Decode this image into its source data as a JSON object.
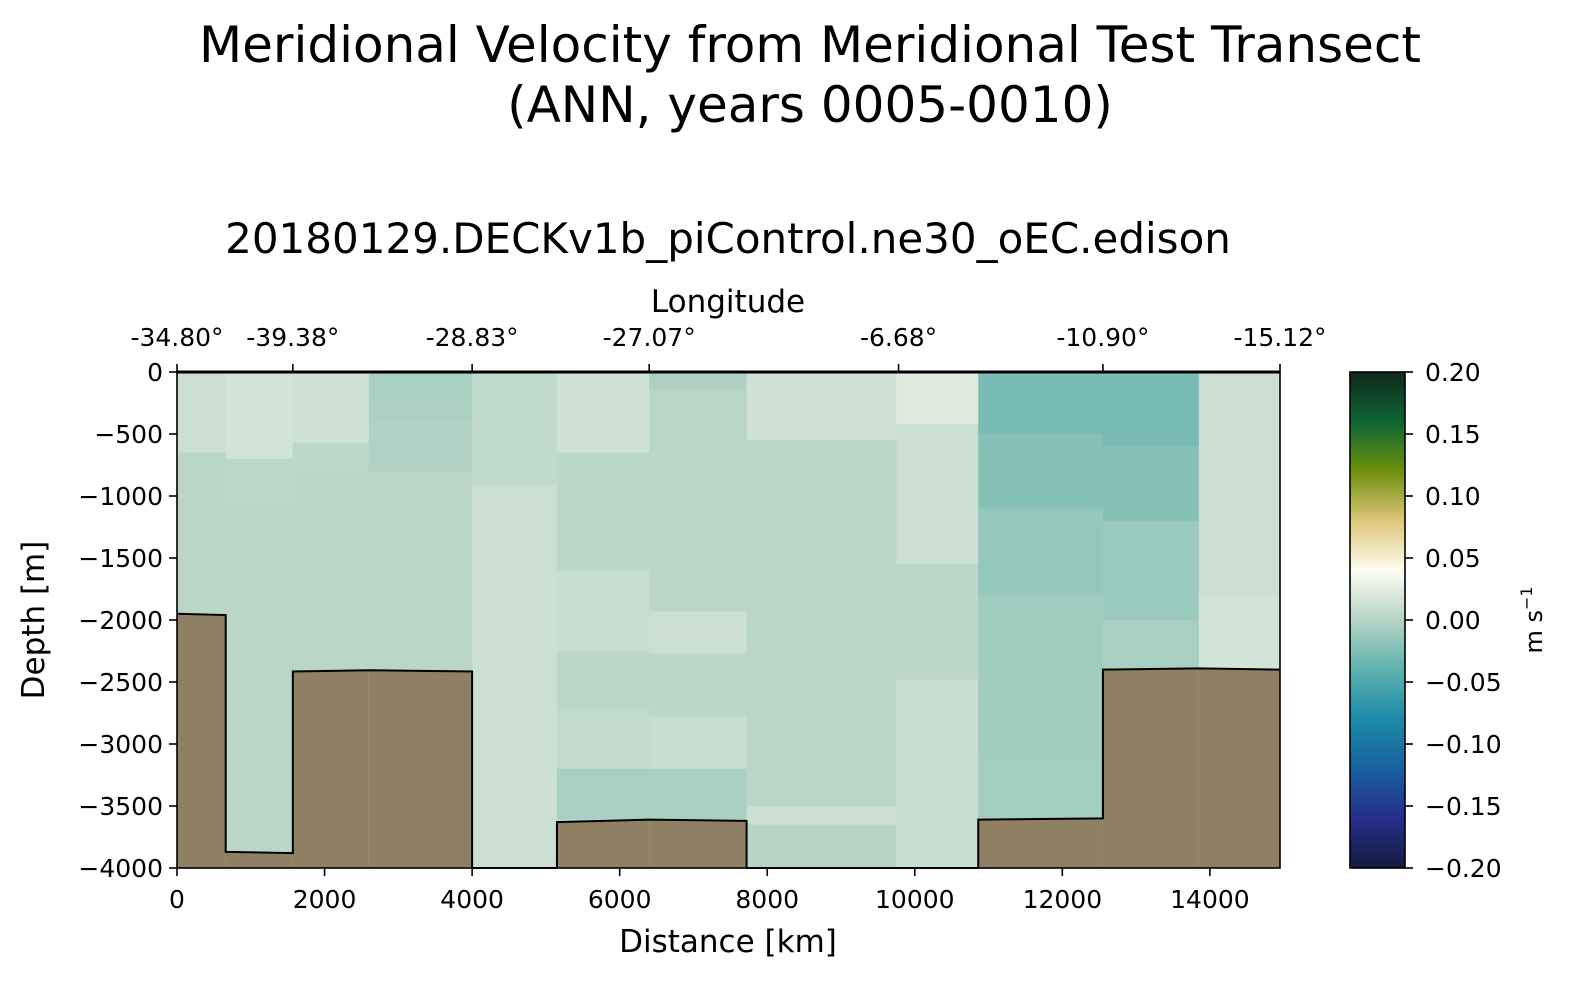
{
  "figure": {
    "title_line1": "Meridional Velocity from Meridional Test Transect",
    "title_line2": "(ANN, years 0005-0010)",
    "subtitle": "20180129.DECKv1b_piControl.ne30_oEC.edison"
  },
  "chart_data": {
    "type": "heatmap",
    "title": "Meridional Velocity from Meridional Test Transect (ANN, years 0005-0010)",
    "subtitle": "20180129.DECKv1b_piControl.ne30_oEC.edison",
    "xlabel": "Distance [km]",
    "ylabel": "Depth [m]",
    "top_xlabel": "Longitude",
    "xlim": [
      0,
      14950
    ],
    "ylim": [
      -4000,
      0
    ],
    "x_ticks": [
      0,
      2000,
      4000,
      6000,
      8000,
      10000,
      12000,
      14000
    ],
    "x_tick_labels": [
      "0",
      "2000",
      "4000",
      "6000",
      "8000",
      "10000",
      "12000",
      "14000"
    ],
    "y_ticks": [
      0,
      -500,
      -1000,
      -1500,
      -2000,
      -2500,
      -3000,
      -3500,
      -4000
    ],
    "y_tick_labels": [
      "0",
      "−500",
      "−1000",
      "−1500",
      "−2000",
      "−2500",
      "−3000",
      "−3500",
      "−4000"
    ],
    "top_ticks": [
      0,
      1570,
      4000,
      6400,
      9780,
      12550,
      14950
    ],
    "top_tick_labels": [
      "-34.80°",
      "-39.38°",
      "-28.83°",
      "-27.07°",
      "-6.68°",
      "-10.90°",
      "-15.12°"
    ],
    "colorbar": {
      "label": "m s",
      "label_exp": "−1",
      "range": [
        -0.2,
        0.2
      ],
      "ticks": [
        0.2,
        0.15,
        0.1,
        0.05,
        0.0,
        -0.05,
        -0.1,
        -0.15,
        -0.2
      ],
      "tick_labels": [
        "0.20",
        "0.15",
        "0.10",
        "0.05",
        "0.00",
        "−0.05",
        "−0.10",
        "−0.15",
        "−0.20"
      ],
      "colors": [
        "#121c3e",
        "#272e8c",
        "#19609e",
        "#1b8ba8",
        "#5fb2ad",
        "#b5d4c6",
        "#fdfcf0",
        "#ddc77a",
        "#6d8f0d",
        "#0c6633",
        "#11271a"
      ]
    },
    "bathymetry_color": "#8f8064",
    "columns": [
      {
        "x0": 0,
        "x1": 660,
        "cells": [
          [
            0,
            -650,
            0.012
          ],
          [
            -650,
            -1950,
            0.002
          ]
        ],
        "seafloor": [
          [
            0,
            -1950
          ],
          [
            660,
            -1960
          ]
        ]
      },
      {
        "x0": 660,
        "x1": 1570,
        "cells": [
          [
            0,
            -700,
            0.016
          ],
          [
            -700,
            -1050,
            0.004
          ],
          [
            -1050,
            -1600,
            0.003
          ],
          [
            -1600,
            -3870,
            0.002
          ]
        ],
        "seafloor": [
          [
            660,
            -3870
          ],
          [
            1570,
            -3880
          ]
        ]
      },
      {
        "x0": 1570,
        "x1": 2600,
        "cells": [
          [
            0,
            -570,
            0.014
          ],
          [
            -570,
            -750,
            0.004
          ],
          [
            -750,
            -2000,
            0.003
          ],
          [
            -2000,
            -2400,
            0.002
          ]
        ],
        "seafloor": [
          [
            1570,
            -2415
          ],
          [
            2600,
            -2405
          ]
        ]
      },
      {
        "x0": 2600,
        "x1": 4000,
        "cells": [
          [
            0,
            -200,
            -0.006
          ],
          [
            -200,
            -400,
            -0.004
          ],
          [
            -400,
            -800,
            -0.002
          ],
          [
            -800,
            -2000,
            0.003
          ],
          [
            -2000,
            -2400,
            0.002
          ]
        ],
        "seafloor": [
          [
            2600,
            -2405
          ],
          [
            4000,
            -2415
          ]
        ]
      },
      {
        "x0": 4000,
        "x1": 5150,
        "cells": [
          [
            0,
            -920,
            0.006
          ],
          [
            -920,
            -4000,
            0.012
          ]
        ],
        "seafloor": []
      },
      {
        "x0": 5150,
        "x1": 6400,
        "cells": [
          [
            0,
            -650,
            0.014
          ],
          [
            -650,
            -1600,
            0.003
          ],
          [
            -1600,
            -2250,
            0.01
          ],
          [
            -2250,
            -2730,
            0.003
          ],
          [
            -2730,
            -3200,
            0.007
          ],
          [
            -3200,
            -3600,
            -0.006
          ]
        ],
        "seafloor": [
          [
            5150,
            -3630
          ],
          [
            6400,
            -3610
          ]
        ]
      },
      {
        "x0": 6400,
        "x1": 7720,
        "cells": [
          [
            0,
            -150,
            -0.003
          ],
          [
            -150,
            -1930,
            0.002
          ],
          [
            -1930,
            -2270,
            0.012
          ],
          [
            -2270,
            -2780,
            0.003
          ],
          [
            -2780,
            -3200,
            0.01
          ],
          [
            -3200,
            -3600,
            -0.006
          ]
        ],
        "seafloor": [
          [
            6400,
            -3610
          ],
          [
            7720,
            -3620
          ]
        ]
      },
      {
        "x0": 7720,
        "x1": 9750,
        "cells": [
          [
            0,
            -550,
            0.014
          ],
          [
            -550,
            -3500,
            0.002
          ],
          [
            -3500,
            -3650,
            0.012
          ],
          [
            -3650,
            -4000,
            0.001
          ]
        ],
        "seafloor": []
      },
      {
        "x0": 9750,
        "x1": 10860,
        "cells": [
          [
            0,
            -420,
            0.022
          ],
          [
            -420,
            -1550,
            0.012
          ],
          [
            -1550,
            -2480,
            0.003
          ],
          [
            -2480,
            -4000,
            0.01
          ]
        ],
        "seafloor": []
      },
      {
        "x0": 10860,
        "x1": 12550,
        "cells": [
          [
            0,
            -500,
            -0.028
          ],
          [
            -500,
            -1100,
            -0.022
          ],
          [
            -1100,
            -1800,
            -0.015
          ],
          [
            -1800,
            -3100,
            -0.01
          ],
          [
            -3100,
            -3600,
            -0.008
          ]
        ],
        "seafloor": [
          [
            10860,
            -3610
          ],
          [
            12550,
            -3600
          ]
        ]
      },
      {
        "x0": 12550,
        "x1": 13850,
        "cells": [
          [
            0,
            -600,
            -0.028
          ],
          [
            -600,
            -1200,
            -0.022
          ],
          [
            -1200,
            -2000,
            -0.012
          ],
          [
            -2000,
            -2390,
            -0.006
          ]
        ],
        "seafloor": [
          [
            12550,
            -2400
          ],
          [
            13850,
            -2390
          ]
        ]
      },
      {
        "x0": 13850,
        "x1": 14950,
        "cells": [
          [
            0,
            -1800,
            0.012
          ],
          [
            -1800,
            -2400,
            0.016
          ]
        ],
        "seafloor": [
          [
            13850,
            -2390
          ],
          [
            14950,
            -2400
          ]
        ]
      }
    ]
  }
}
